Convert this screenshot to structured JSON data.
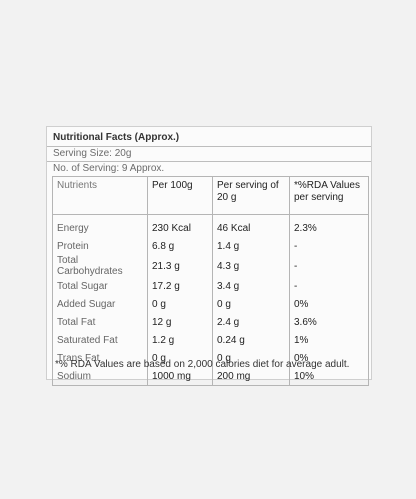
{
  "label": {
    "title": "Nutritional Facts (Approx.)",
    "serving_size": "Serving Size: 20g",
    "servings": "No. of Serving: 9 Approx.",
    "table": {
      "header": [
        "Nutrients",
        "Per 100g",
        "Per serving of 20 g",
        "*%RDA Values per serving"
      ],
      "rows": [
        [
          "Energy",
          "230 Kcal",
          "46 Kcal",
          "2.3%"
        ],
        [
          "Protein",
          "6.8 g",
          "1.4 g",
          "-"
        ],
        [
          "Total Carbohydrates",
          "21.3 g",
          "4.3 g",
          "-"
        ],
        [
          "Total Sugar",
          "17.2 g",
          "3.4 g",
          "-"
        ],
        [
          "Added Sugar",
          "0 g",
          "0 g",
          "0%"
        ],
        [
          "Total Fat",
          "12 g",
          "2.4 g",
          "3.6%"
        ],
        [
          "Saturated Fat",
          "1.2 g",
          "0.24 g",
          "1%"
        ],
        [
          "Trans Fat",
          "0 g",
          "0 g",
          "0%"
        ],
        [
          "Sodium",
          "1000 mg",
          "200 mg",
          "10%"
        ]
      ]
    },
    "footnote": "*% RDA Values are based on 2,000 calories diet for average adult."
  }
}
